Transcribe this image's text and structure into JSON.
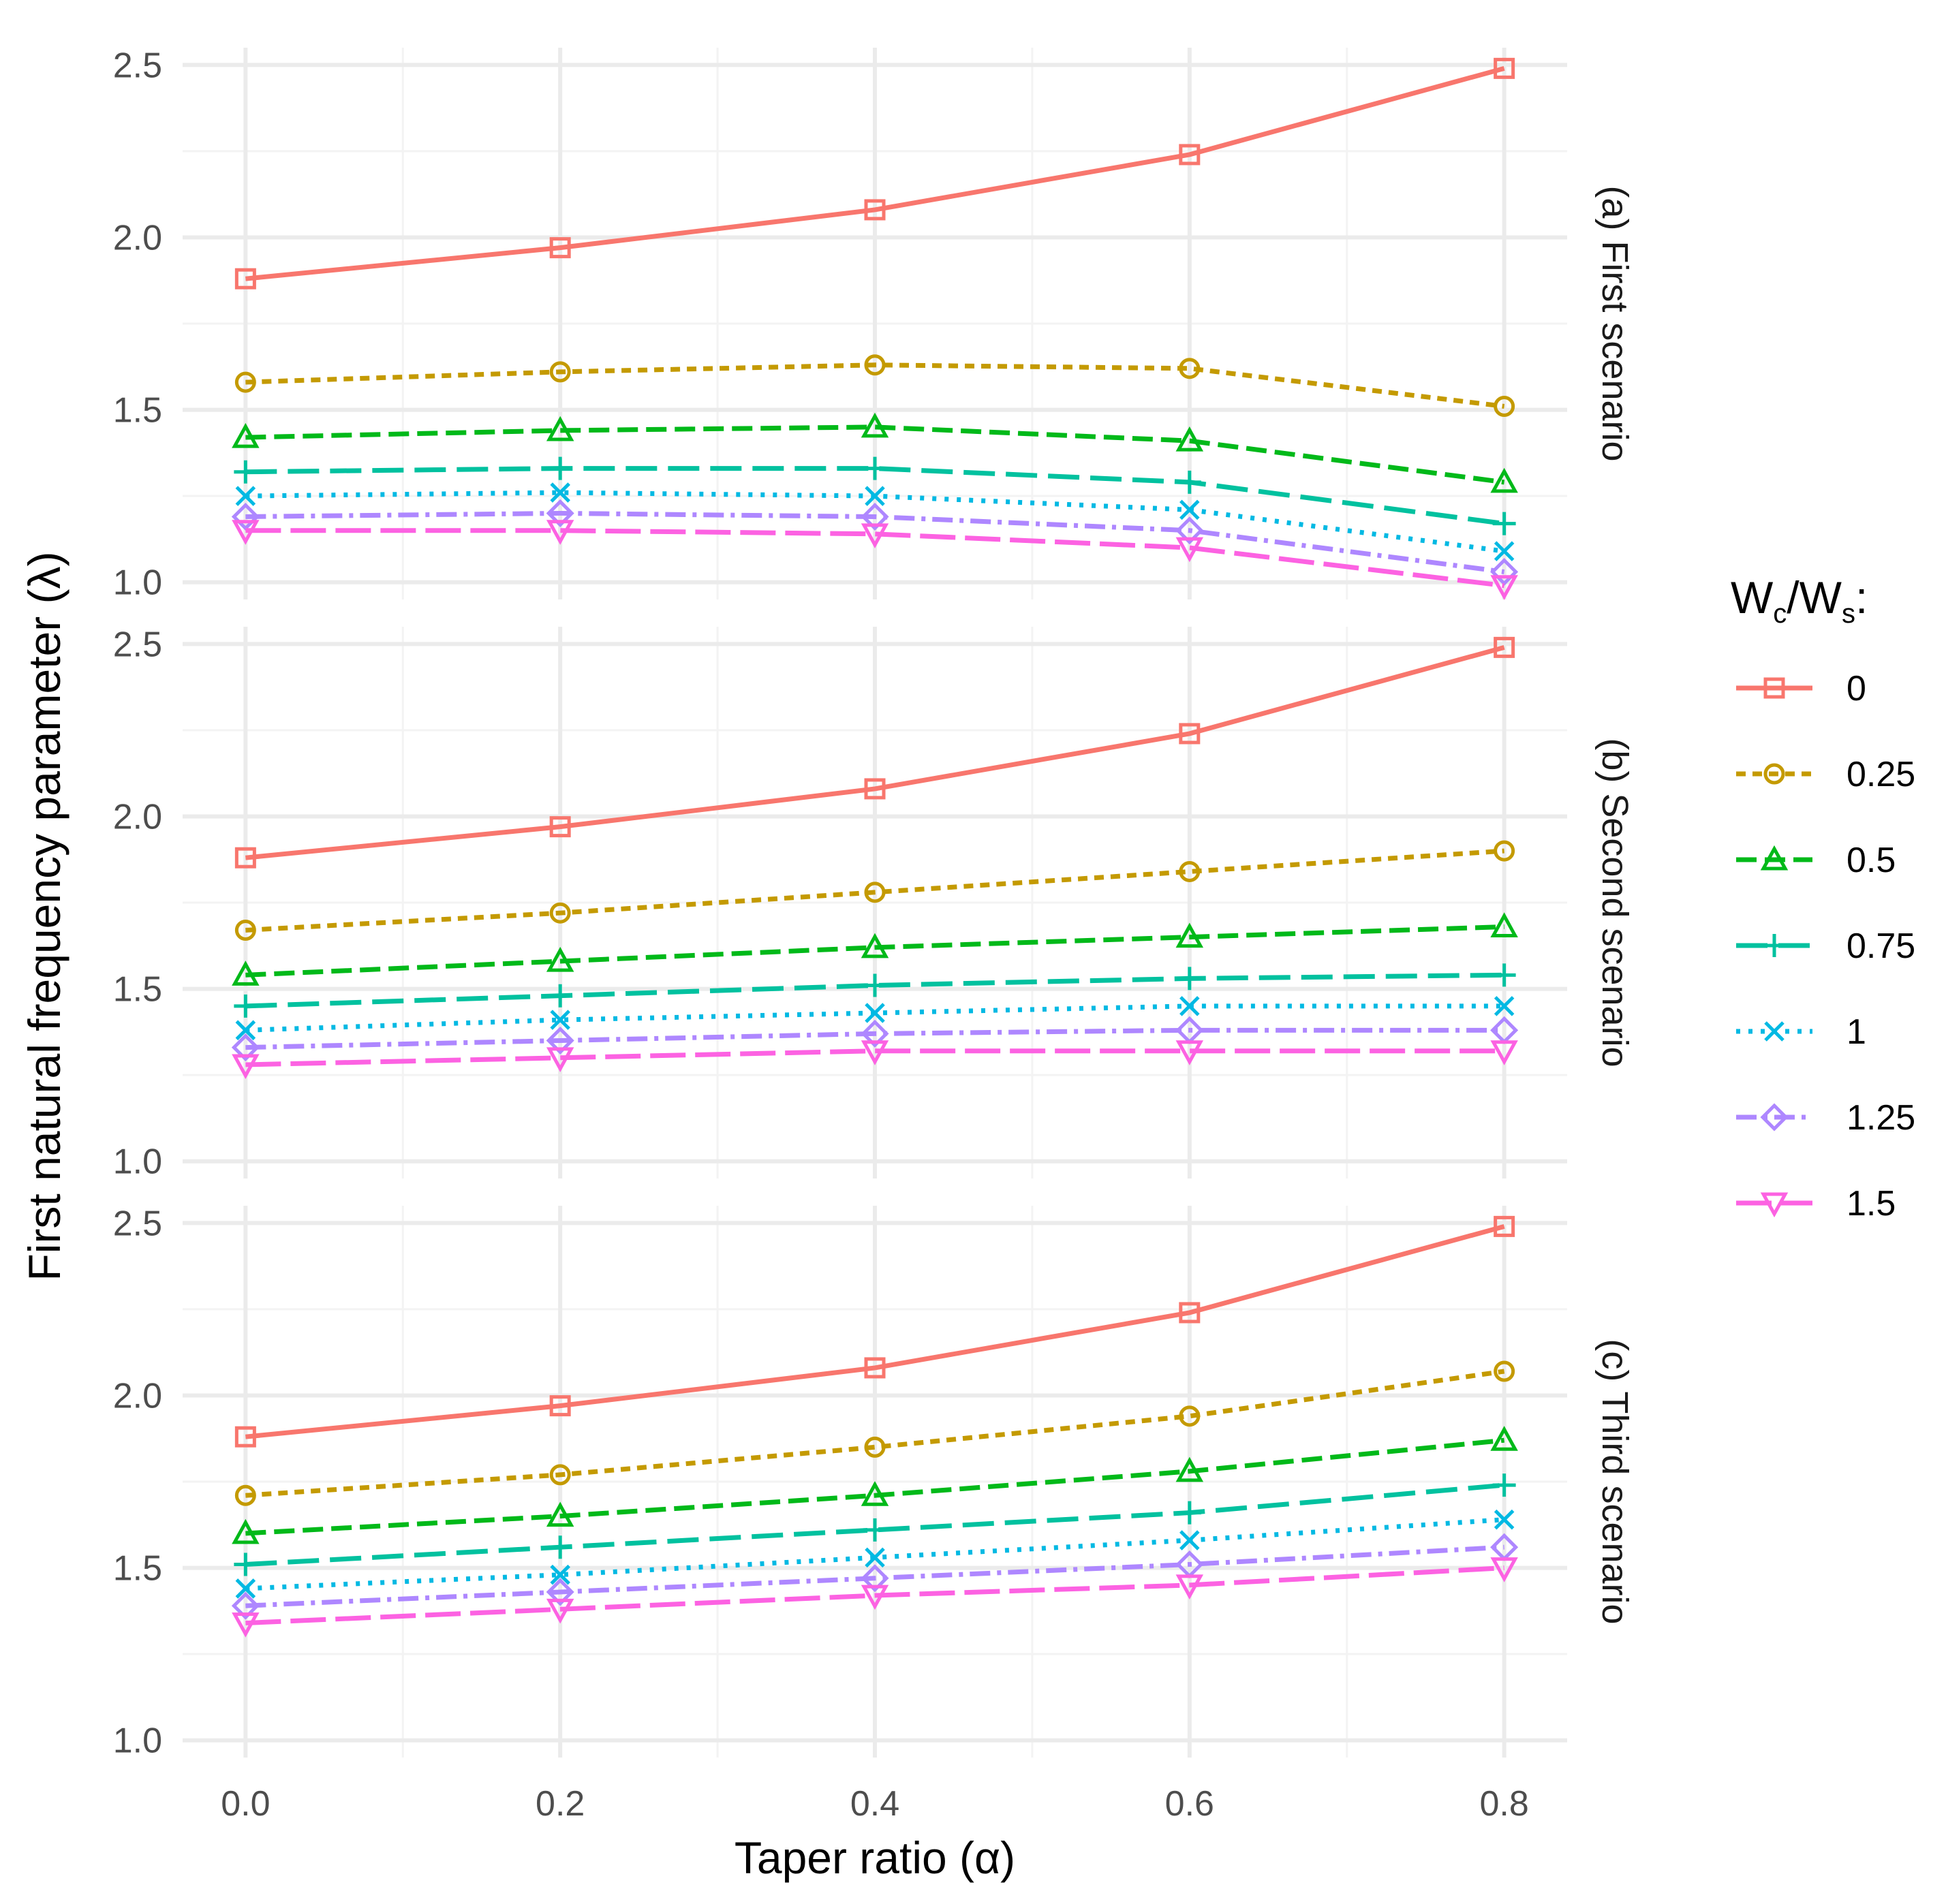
{
  "chart_data": {
    "type": "line",
    "title": "",
    "xlabel": "Taper ratio (α)",
    "ylabel": "First natural frequency parameter (λ)",
    "x": [
      0.0,
      0.2,
      0.4,
      0.6,
      0.8
    ],
    "x_tick_labels": [
      "0.0",
      "0.2",
      "0.4",
      "0.6",
      "0.8"
    ],
    "xlim": [
      -0.04,
      0.84
    ],
    "ylim": [
      0.95,
      2.55
    ],
    "y_ticks": [
      1.0,
      1.5,
      2.0,
      2.5
    ],
    "y_tick_labels": [
      "1.0",
      "1.5",
      "2.0",
      "2.5"
    ],
    "grid": true,
    "legend": {
      "title": "Wc/Ws:",
      "title_parts": [
        "W",
        "c",
        "/W",
        "s",
        ":"
      ],
      "position": "right"
    },
    "series_styles": [
      {
        "name": "0",
        "color": "#F8766D",
        "marker": "square",
        "dash": "solid"
      },
      {
        "name": "0.25",
        "color": "#C49A00",
        "marker": "circle",
        "dash": "dotted-short"
      },
      {
        "name": "0.5",
        "color": "#00B919",
        "marker": "triangle-up",
        "dash": "dashed"
      },
      {
        "name": "0.75",
        "color": "#00C19F",
        "marker": "plus",
        "dash": "long-dash"
      },
      {
        "name": "1",
        "color": "#00B9E3",
        "marker": "cross",
        "dash": "dotted"
      },
      {
        "name": "1.25",
        "color": "#AE87FF",
        "marker": "diamond",
        "dash": "dot-dash"
      },
      {
        "name": "1.5",
        "color": "#FC62E2",
        "marker": "triangle-down",
        "dash": "long-dash-2"
      }
    ],
    "panels": [
      {
        "label": "(a) First scenario",
        "series": [
          {
            "name": "0",
            "values": [
              1.88,
              1.97,
              2.08,
              2.24,
              2.49
            ]
          },
          {
            "name": "0.25",
            "values": [
              1.58,
              1.61,
              1.63,
              1.62,
              1.51
            ]
          },
          {
            "name": "0.5",
            "values": [
              1.42,
              1.44,
              1.45,
              1.41,
              1.29
            ]
          },
          {
            "name": "0.75",
            "values": [
              1.32,
              1.33,
              1.33,
              1.29,
              1.17
            ]
          },
          {
            "name": "1",
            "values": [
              1.25,
              1.26,
              1.25,
              1.21,
              1.09
            ]
          },
          {
            "name": "1.25",
            "values": [
              1.19,
              1.2,
              1.19,
              1.15,
              1.03
            ]
          },
          {
            "name": "1.5",
            "values": [
              1.15,
              1.15,
              1.14,
              1.1,
              0.99
            ]
          }
        ]
      },
      {
        "label": "(b) Second scenario",
        "series": [
          {
            "name": "0",
            "values": [
              1.88,
              1.97,
              2.08,
              2.24,
              2.49
            ]
          },
          {
            "name": "0.25",
            "values": [
              1.67,
              1.72,
              1.78,
              1.84,
              1.9
            ]
          },
          {
            "name": "0.5",
            "values": [
              1.54,
              1.58,
              1.62,
              1.65,
              1.68
            ]
          },
          {
            "name": "0.75",
            "values": [
              1.45,
              1.48,
              1.51,
              1.53,
              1.54
            ]
          },
          {
            "name": "1",
            "values": [
              1.38,
              1.41,
              1.43,
              1.45,
              1.45
            ]
          },
          {
            "name": "1.25",
            "values": [
              1.33,
              1.35,
              1.37,
              1.38,
              1.38
            ]
          },
          {
            "name": "1.5",
            "values": [
              1.28,
              1.3,
              1.32,
              1.32,
              1.32
            ]
          }
        ]
      },
      {
        "label": "(c) Third scenario",
        "series": [
          {
            "name": "0",
            "values": [
              1.88,
              1.97,
              2.08,
              2.24,
              2.49
            ]
          },
          {
            "name": "0.25",
            "values": [
              1.71,
              1.77,
              1.85,
              1.94,
              2.07
            ]
          },
          {
            "name": "0.5",
            "values": [
              1.6,
              1.65,
              1.71,
              1.78,
              1.87
            ]
          },
          {
            "name": "0.75",
            "values": [
              1.51,
              1.56,
              1.61,
              1.66,
              1.74
            ]
          },
          {
            "name": "1",
            "values": [
              1.44,
              1.48,
              1.53,
              1.58,
              1.64
            ]
          },
          {
            "name": "1.25",
            "values": [
              1.39,
              1.43,
              1.47,
              1.51,
              1.56
            ]
          },
          {
            "name": "1.5",
            "values": [
              1.34,
              1.38,
              1.42,
              1.45,
              1.5
            ]
          }
        ]
      }
    ]
  }
}
